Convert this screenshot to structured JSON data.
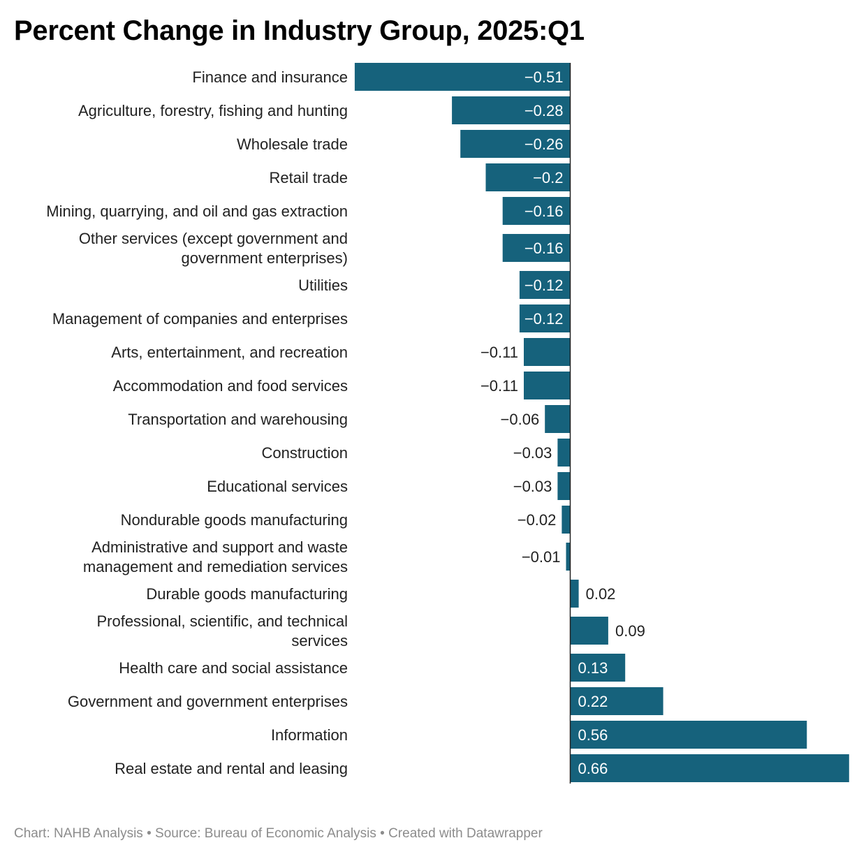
{
  "header": {
    "title": "Percent Change in Industry Group, 2025:Q1"
  },
  "footer": {
    "credit": "Chart: NAHB Analysis",
    "source": "Source: Bureau of Economic Analysis",
    "tool": "Created with Datawrapper",
    "separator": "•"
  },
  "colors": {
    "bar": "#16627c",
    "axis": "#222222",
    "label_inside": "#ffffff",
    "label_outside": "#222222"
  },
  "chart_data": {
    "type": "bar",
    "orientation": "horizontal",
    "title": "Percent Change in Industry Group, 2025:Q1",
    "xlabel": "",
    "ylabel": "",
    "grid": false,
    "legend": "none",
    "xlim": [
      -0.51,
      0.66
    ],
    "categories": [
      "Finance and insurance",
      "Agriculture, forestry, fishing and hunting",
      "Wholesale trade",
      "Retail trade",
      "Mining, quarrying, and oil and gas extraction",
      [
        "Other services (except government and",
        "government enterprises)"
      ],
      "Utilities",
      "Management of companies and enterprises",
      "Arts, entertainment, and recreation",
      "Accommodation and food services",
      "Transportation and warehousing",
      "Construction",
      "Educational services",
      "Nondurable goods manufacturing",
      [
        "Administrative and support and waste",
        "management and remediation services"
      ],
      "Durable goods manufacturing",
      [
        "Professional, scientific, and technical",
        "services"
      ],
      "Health care and social assistance",
      "Government and government enterprises",
      "Information",
      "Real estate and rental and leasing"
    ],
    "values": [
      -0.51,
      -0.28,
      -0.26,
      -0.2,
      -0.16,
      -0.16,
      -0.12,
      -0.12,
      -0.11,
      -0.11,
      -0.06,
      -0.03,
      -0.03,
      -0.02,
      -0.01,
      0.02,
      0.09,
      0.13,
      0.22,
      0.56,
      0.66
    ],
    "value_labels": [
      "−0.51",
      "−0.28",
      "−0.26",
      "−0.2",
      "−0.16",
      "−0.16",
      "−0.12",
      "−0.12",
      "−0.11",
      "−0.11",
      "−0.06",
      "−0.03",
      "−0.03",
      "−0.02",
      "−0.01",
      "0.02",
      "0.09",
      "0.13",
      "0.22",
      "0.56",
      "0.66"
    ]
  }
}
